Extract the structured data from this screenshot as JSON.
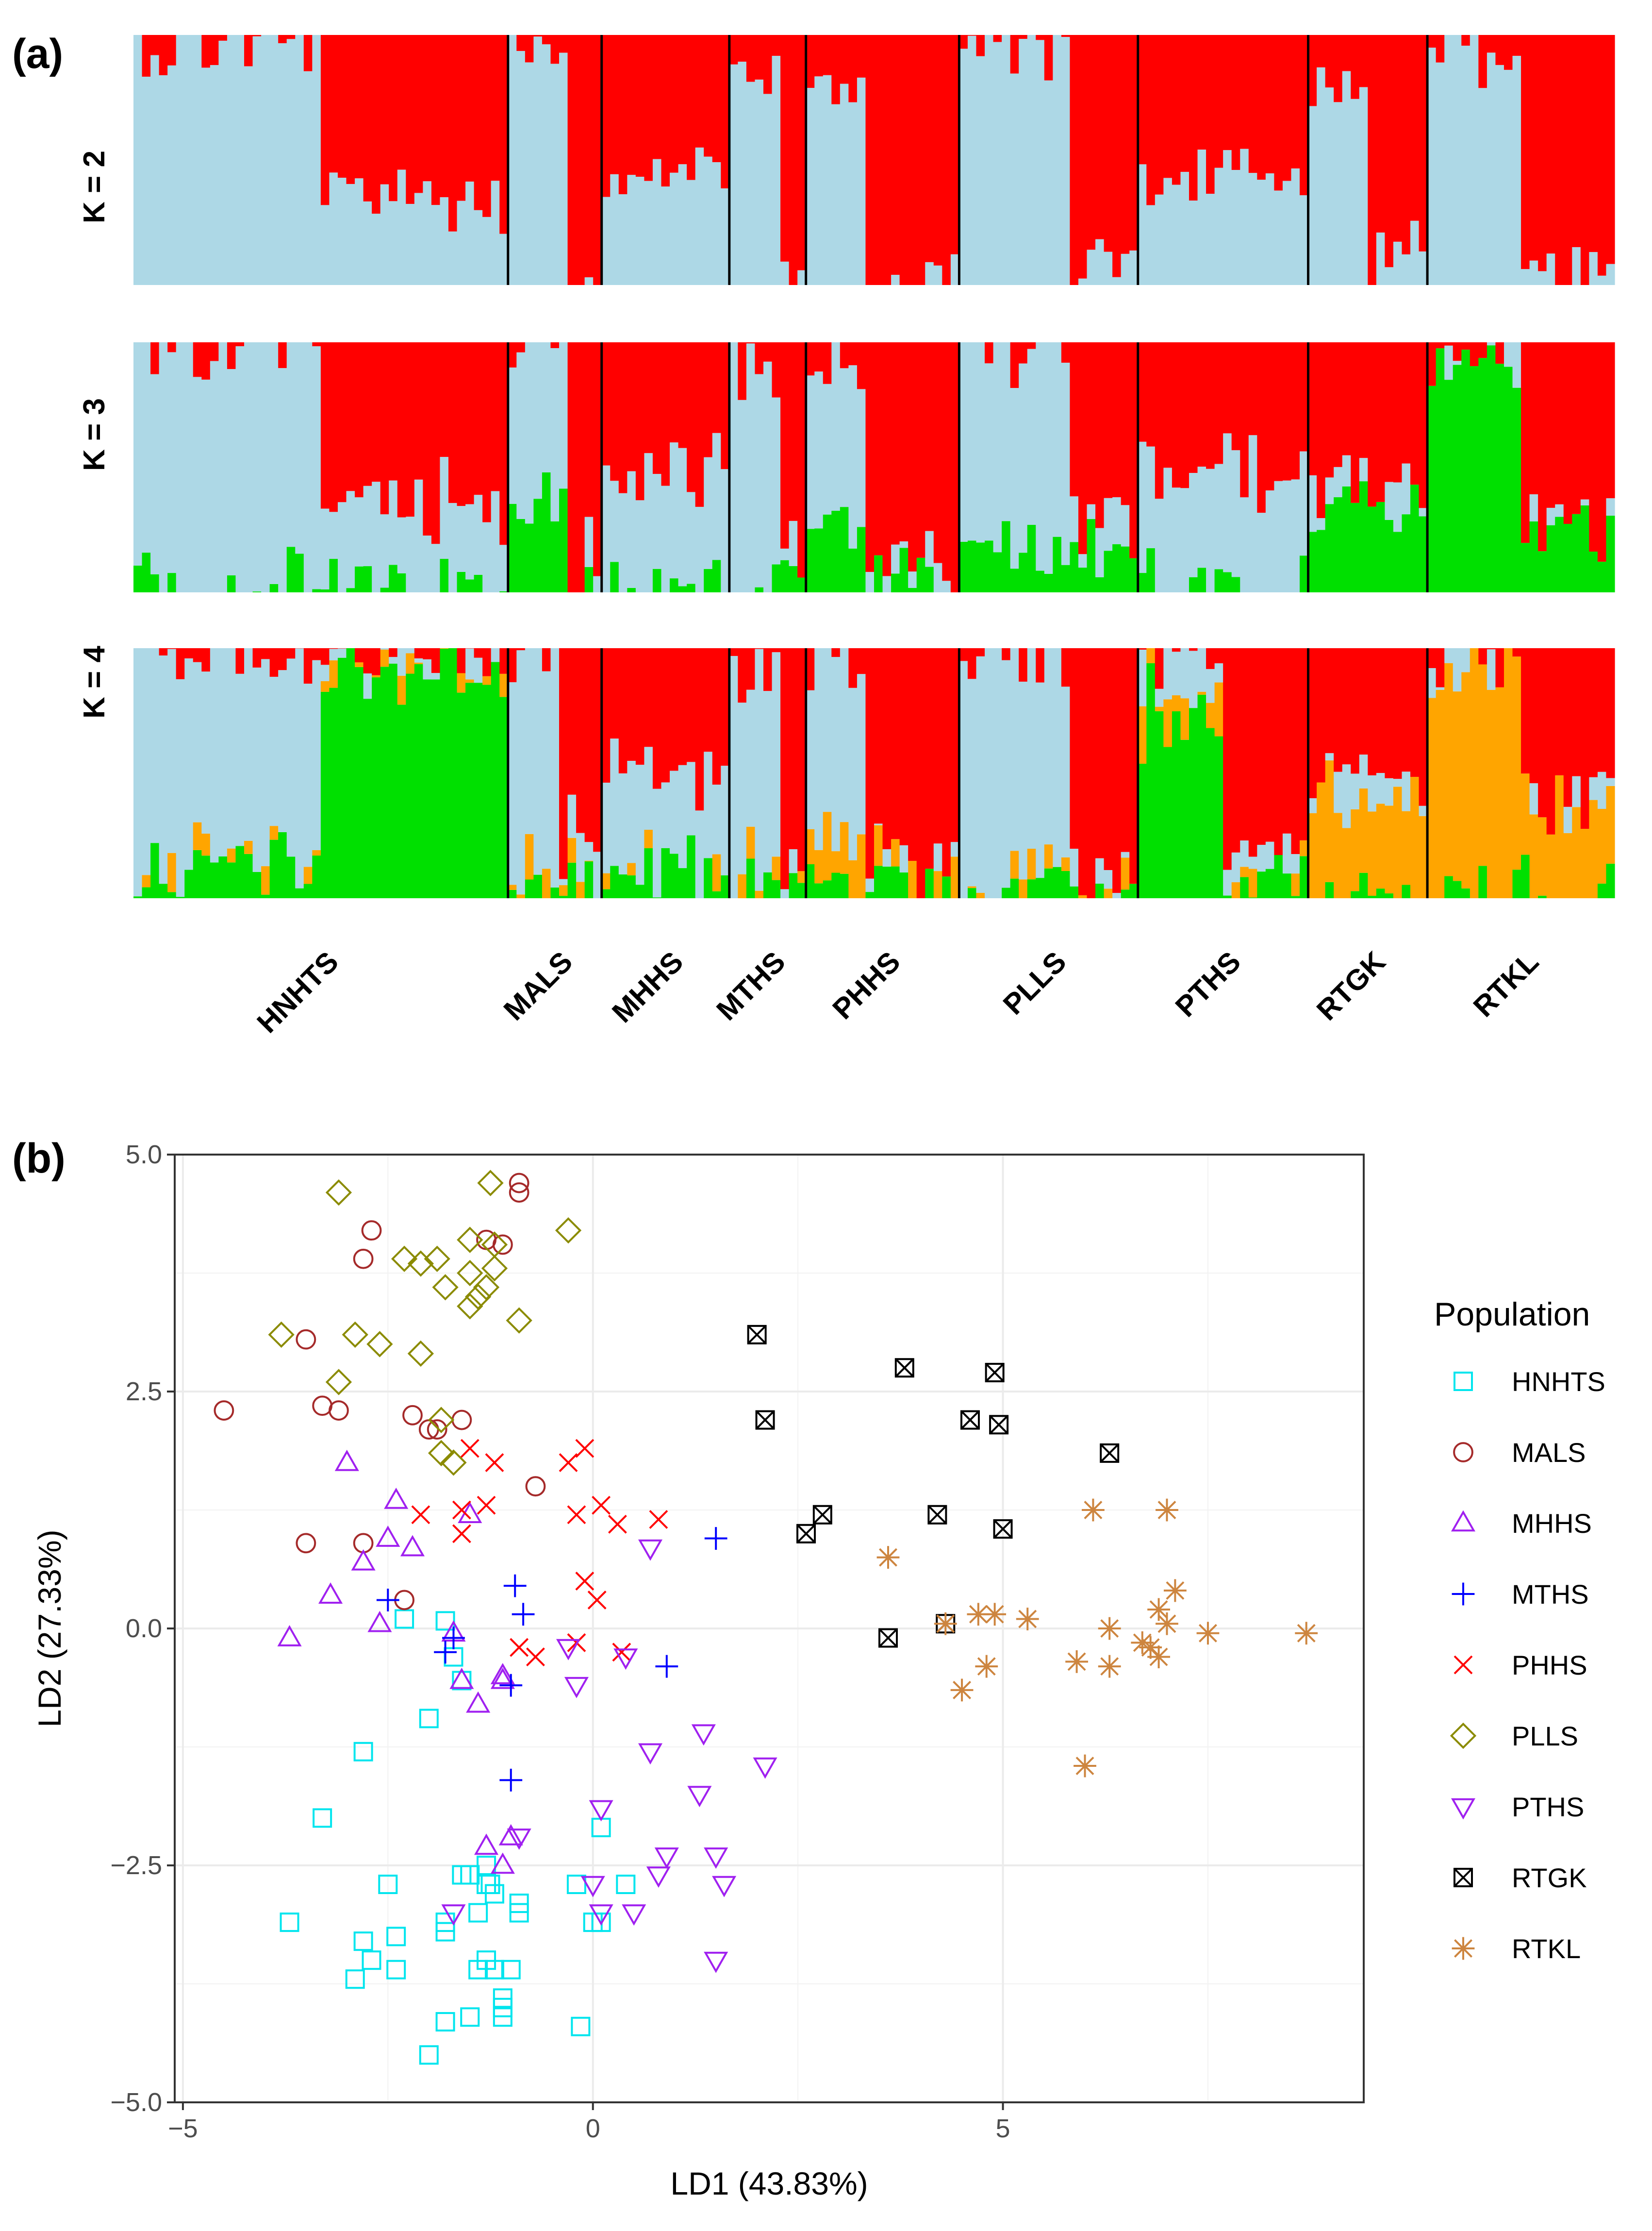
{
  "panel_labels": {
    "a": "(a)",
    "b": "(b)"
  },
  "colors": {
    "cluster_blue": "#add8e6",
    "cluster_red": "#ff0000",
    "cluster_green": "#00e000",
    "cluster_orange": "#ffa500"
  },
  "chart_data": [
    {
      "type": "bar",
      "subtype": "stacked-admixture",
      "panel": "(a)",
      "populations": [
        {
          "name": "HNHTS",
          "n": 44
        },
        {
          "name": "MALS",
          "n": 11
        },
        {
          "name": "MHHS",
          "n": 15
        },
        {
          "name": "MTHS",
          "n": 9
        },
        {
          "name": "PHHS",
          "n": 18
        },
        {
          "name": "PLLS",
          "n": 21
        },
        {
          "name": "PTHS",
          "n": 20
        },
        {
          "name": "RTGK",
          "n": 14
        },
        {
          "name": "RTKL",
          "n": 22
        }
      ],
      "rows": [
        {
          "label": "K = 2",
          "k": 2
        },
        {
          "label": "K = 3",
          "k": 3
        },
        {
          "label": "K = 4",
          "k": 4
        }
      ],
      "ylim": [
        0,
        1
      ]
    },
    {
      "type": "scatter",
      "panel": "(b)",
      "xlabel": "LD1 (43.83%)",
      "ylabel": "LD2 (27.33%)",
      "xlim": [
        -5.1,
        9.4
      ],
      "ylim": [
        -5.0,
        5.0
      ],
      "xticks": [
        -5,
        0,
        5
      ],
      "yticks": [
        5.0,
        2.5,
        0.0,
        -2.5,
        -5.0
      ],
      "xtick_labels": [
        "−5",
        "0",
        "5"
      ],
      "ytick_labels": [
        "5.0",
        "2.5",
        "0.0",
        "−2.5",
        "−5.0"
      ],
      "legend_title": "Population",
      "legend_position": "right",
      "series": [
        {
          "name": "HNHTS",
          "symbol": "square",
          "color": "#00e5ee",
          "points": [
            [
              -3.7,
              -3.1
            ],
            [
              -3.3,
              -2.0
            ],
            [
              -2.8,
              -1.3
            ],
            [
              -2.3,
              0.1
            ],
            [
              -2.0,
              -0.95
            ],
            [
              -1.8,
              0.08
            ],
            [
              -1.7,
              -0.3
            ],
            [
              -1.6,
              -0.55
            ],
            [
              -2.9,
              -3.7
            ],
            [
              -2.8,
              -3.3
            ],
            [
              -2.7,
              -3.5
            ],
            [
              -2.5,
              -2.7
            ],
            [
              -2.4,
              -3.25
            ],
            [
              -2.4,
              -3.6
            ],
            [
              -2.0,
              -4.5
            ],
            [
              -1.8,
              -4.15
            ],
            [
              -1.8,
              -3.1
            ],
            [
              -1.8,
              -3.2
            ],
            [
              -1.6,
              -2.6
            ],
            [
              -1.5,
              -2.6
            ],
            [
              -1.5,
              -4.1
            ],
            [
              -1.4,
              -3.0
            ],
            [
              -1.4,
              -3.6
            ],
            [
              -1.3,
              -2.5
            ],
            [
              -1.3,
              -3.5
            ],
            [
              -1.3,
              -2.7
            ],
            [
              -1.25,
              -2.7
            ],
            [
              -1.2,
              -2.8
            ],
            [
              -1.2,
              -3.6
            ],
            [
              -1.1,
              -4.1
            ],
            [
              -1.1,
              -4.0
            ],
            [
              -1.1,
              -3.9
            ],
            [
              -1.0,
              -3.6
            ],
            [
              -0.9,
              -2.9
            ],
            [
              -0.9,
              -3.0
            ],
            [
              -0.2,
              -2.7
            ],
            [
              -0.15,
              -4.2
            ],
            [
              0.0,
              -3.1
            ],
            [
              0.1,
              -3.1
            ],
            [
              0.1,
              -2.1
            ],
            [
              0.4,
              -2.7
            ]
          ]
        },
        {
          "name": "MALS",
          "symbol": "circle",
          "color": "#a52a2a",
          "points": [
            [
              -4.5,
              2.3
            ],
            [
              -3.5,
              3.05
            ],
            [
              -3.5,
              0.9
            ],
            [
              -3.3,
              2.35
            ],
            [
              -3.1,
              2.3
            ],
            [
              -2.8,
              3.9
            ],
            [
              -2.8,
              0.9
            ],
            [
              -2.7,
              4.2
            ],
            [
              -2.3,
              0.3
            ],
            [
              -2.2,
              2.25
            ],
            [
              -2.0,
              2.1
            ],
            [
              -1.9,
              2.1
            ],
            [
              -1.6,
              2.2
            ],
            [
              -1.3,
              4.1
            ],
            [
              -1.1,
              4.05
            ],
            [
              -0.9,
              4.7
            ],
            [
              -0.9,
              4.6
            ],
            [
              -0.7,
              1.5
            ]
          ]
        },
        {
          "name": "MHHS",
          "symbol": "triangle-up",
          "color": "#a020f0",
          "points": [
            [
              -3.7,
              -0.1
            ],
            [
              -3.2,
              0.35
            ],
            [
              -3.0,
              1.75
            ],
            [
              -2.8,
              0.7
            ],
            [
              -2.6,
              0.05
            ],
            [
              -2.5,
              0.95
            ],
            [
              -2.4,
              1.35
            ],
            [
              -2.2,
              0.85
            ],
            [
              -1.7,
              -0.05
            ],
            [
              -1.6,
              -0.55
            ],
            [
              -1.5,
              1.2
            ],
            [
              -1.4,
              -0.8
            ],
            [
              -1.3,
              -2.3
            ],
            [
              -1.1,
              -2.5
            ],
            [
              -1.1,
              -0.5
            ],
            [
              -1.0,
              -2.2
            ],
            [
              -1.1,
              -0.55
            ]
          ]
        },
        {
          "name": "MTHS",
          "symbol": "plus",
          "color": "#0000ff",
          "points": [
            [
              -2.5,
              0.3
            ],
            [
              -1.8,
              -0.25
            ],
            [
              -1.7,
              -0.1
            ],
            [
              -1.0,
              -0.6
            ],
            [
              -1.0,
              -1.6
            ],
            [
              -0.95,
              0.45
            ],
            [
              -0.85,
              0.15
            ],
            [
              0.9,
              -0.4
            ],
            [
              1.5,
              0.95
            ]
          ]
        },
        {
          "name": "PHHS",
          "symbol": "x",
          "color": "#ff0000",
          "points": [
            [
              -2.1,
              1.2
            ],
            [
              -1.6,
              1.0
            ],
            [
              -1.6,
              1.25
            ],
            [
              -1.3,
              1.3
            ],
            [
              -1.2,
              1.75
            ],
            [
              -1.5,
              1.9
            ],
            [
              -0.9,
              -0.2
            ],
            [
              -0.7,
              -0.3
            ],
            [
              -0.3,
              1.75
            ],
            [
              -0.2,
              1.2
            ],
            [
              -0.1,
              1.9
            ],
            [
              -0.1,
              0.5
            ],
            [
              0.05,
              0.3
            ],
            [
              0.1,
              1.3
            ],
            [
              0.3,
              1.1
            ],
            [
              0.8,
              1.15
            ],
            [
              0.35,
              -0.25
            ],
            [
              -0.2,
              -0.15
            ]
          ]
        },
        {
          "name": "PLLS",
          "symbol": "diamond",
          "color": "#8b8b00",
          "points": [
            [
              -3.8,
              3.1
            ],
            [
              -3.1,
              4.6
            ],
            [
              -3.1,
              2.6
            ],
            [
              -2.9,
              3.1
            ],
            [
              -2.6,
              3.0
            ],
            [
              -2.3,
              3.9
            ],
            [
              -2.1,
              2.9
            ],
            [
              -2.1,
              3.85
            ],
            [
              -1.9,
              3.9
            ],
            [
              -1.85,
              2.2
            ],
            [
              -1.85,
              1.85
            ],
            [
              -1.8,
              3.6
            ],
            [
              -1.7,
              1.75
            ],
            [
              -1.5,
              3.75
            ],
            [
              -1.5,
              4.1
            ],
            [
              -1.5,
              3.4
            ],
            [
              -1.4,
              3.5
            ],
            [
              -1.3,
              3.6
            ],
            [
              -1.25,
              4.7
            ],
            [
              -1.2,
              4.05
            ],
            [
              -0.9,
              3.25
            ],
            [
              -0.3,
              4.2
            ],
            [
              -1.2,
              3.8
            ]
          ]
        },
        {
          "name": "PTHS",
          "symbol": "triangle-down",
          "color": "#a020f0",
          "points": [
            [
              -0.3,
              -0.2
            ],
            [
              -0.2,
              -0.6
            ],
            [
              0.0,
              -2.7
            ],
            [
              0.1,
              -1.9
            ],
            [
              0.1,
              -3.0
            ],
            [
              0.4,
              -0.3
            ],
            [
              0.5,
              -3.0
            ],
            [
              0.7,
              0.85
            ],
            [
              0.7,
              -1.3
            ],
            [
              0.8,
              -2.6
            ],
            [
              0.9,
              -2.4
            ],
            [
              1.3,
              -1.75
            ],
            [
              1.35,
              -1.1
            ],
            [
              1.5,
              -2.4
            ],
            [
              1.5,
              -3.5
            ],
            [
              1.6,
              -2.7
            ],
            [
              2.1,
              -1.45
            ],
            [
              -0.9,
              -2.2
            ],
            [
              -1.7,
              -3.0
            ]
          ]
        },
        {
          "name": "RTGK",
          "symbol": "square-x",
          "color": "#000000",
          "points": [
            [
              2.0,
              3.1
            ],
            [
              2.1,
              2.2
            ],
            [
              2.6,
              1.0
            ],
            [
              2.8,
              1.2
            ],
            [
              3.6,
              -0.1
            ],
            [
              3.8,
              2.75
            ],
            [
              4.2,
              1.2
            ],
            [
              4.3,
              0.05
            ],
            [
              4.6,
              2.2
            ],
            [
              4.9,
              2.7
            ],
            [
              4.95,
              2.15
            ],
            [
              5.0,
              1.05
            ],
            [
              6.3,
              1.85
            ]
          ]
        },
        {
          "name": "RTKL",
          "symbol": "asterisk",
          "color": "#cd853f",
          "points": [
            [
              3.6,
              0.75
            ],
            [
              4.3,
              0.05
            ],
            [
              4.5,
              -0.65
            ],
            [
              4.7,
              0.15
            ],
            [
              4.8,
              -0.4
            ],
            [
              4.9,
              0.15
            ],
            [
              5.3,
              0.1
            ],
            [
              5.9,
              -0.35
            ],
            [
              6.0,
              -1.45
            ],
            [
              6.1,
              1.25
            ],
            [
              6.3,
              -0.4
            ],
            [
              6.3,
              0.0
            ],
            [
              6.7,
              -0.15
            ],
            [
              6.8,
              -0.2
            ],
            [
              6.9,
              0.2
            ],
            [
              6.9,
              -0.3
            ],
            [
              7.0,
              0.05
            ],
            [
              7.0,
              1.25
            ],
            [
              7.1,
              0.4
            ],
            [
              7.5,
              -0.05
            ],
            [
              8.7,
              -0.05
            ]
          ]
        }
      ]
    }
  ]
}
